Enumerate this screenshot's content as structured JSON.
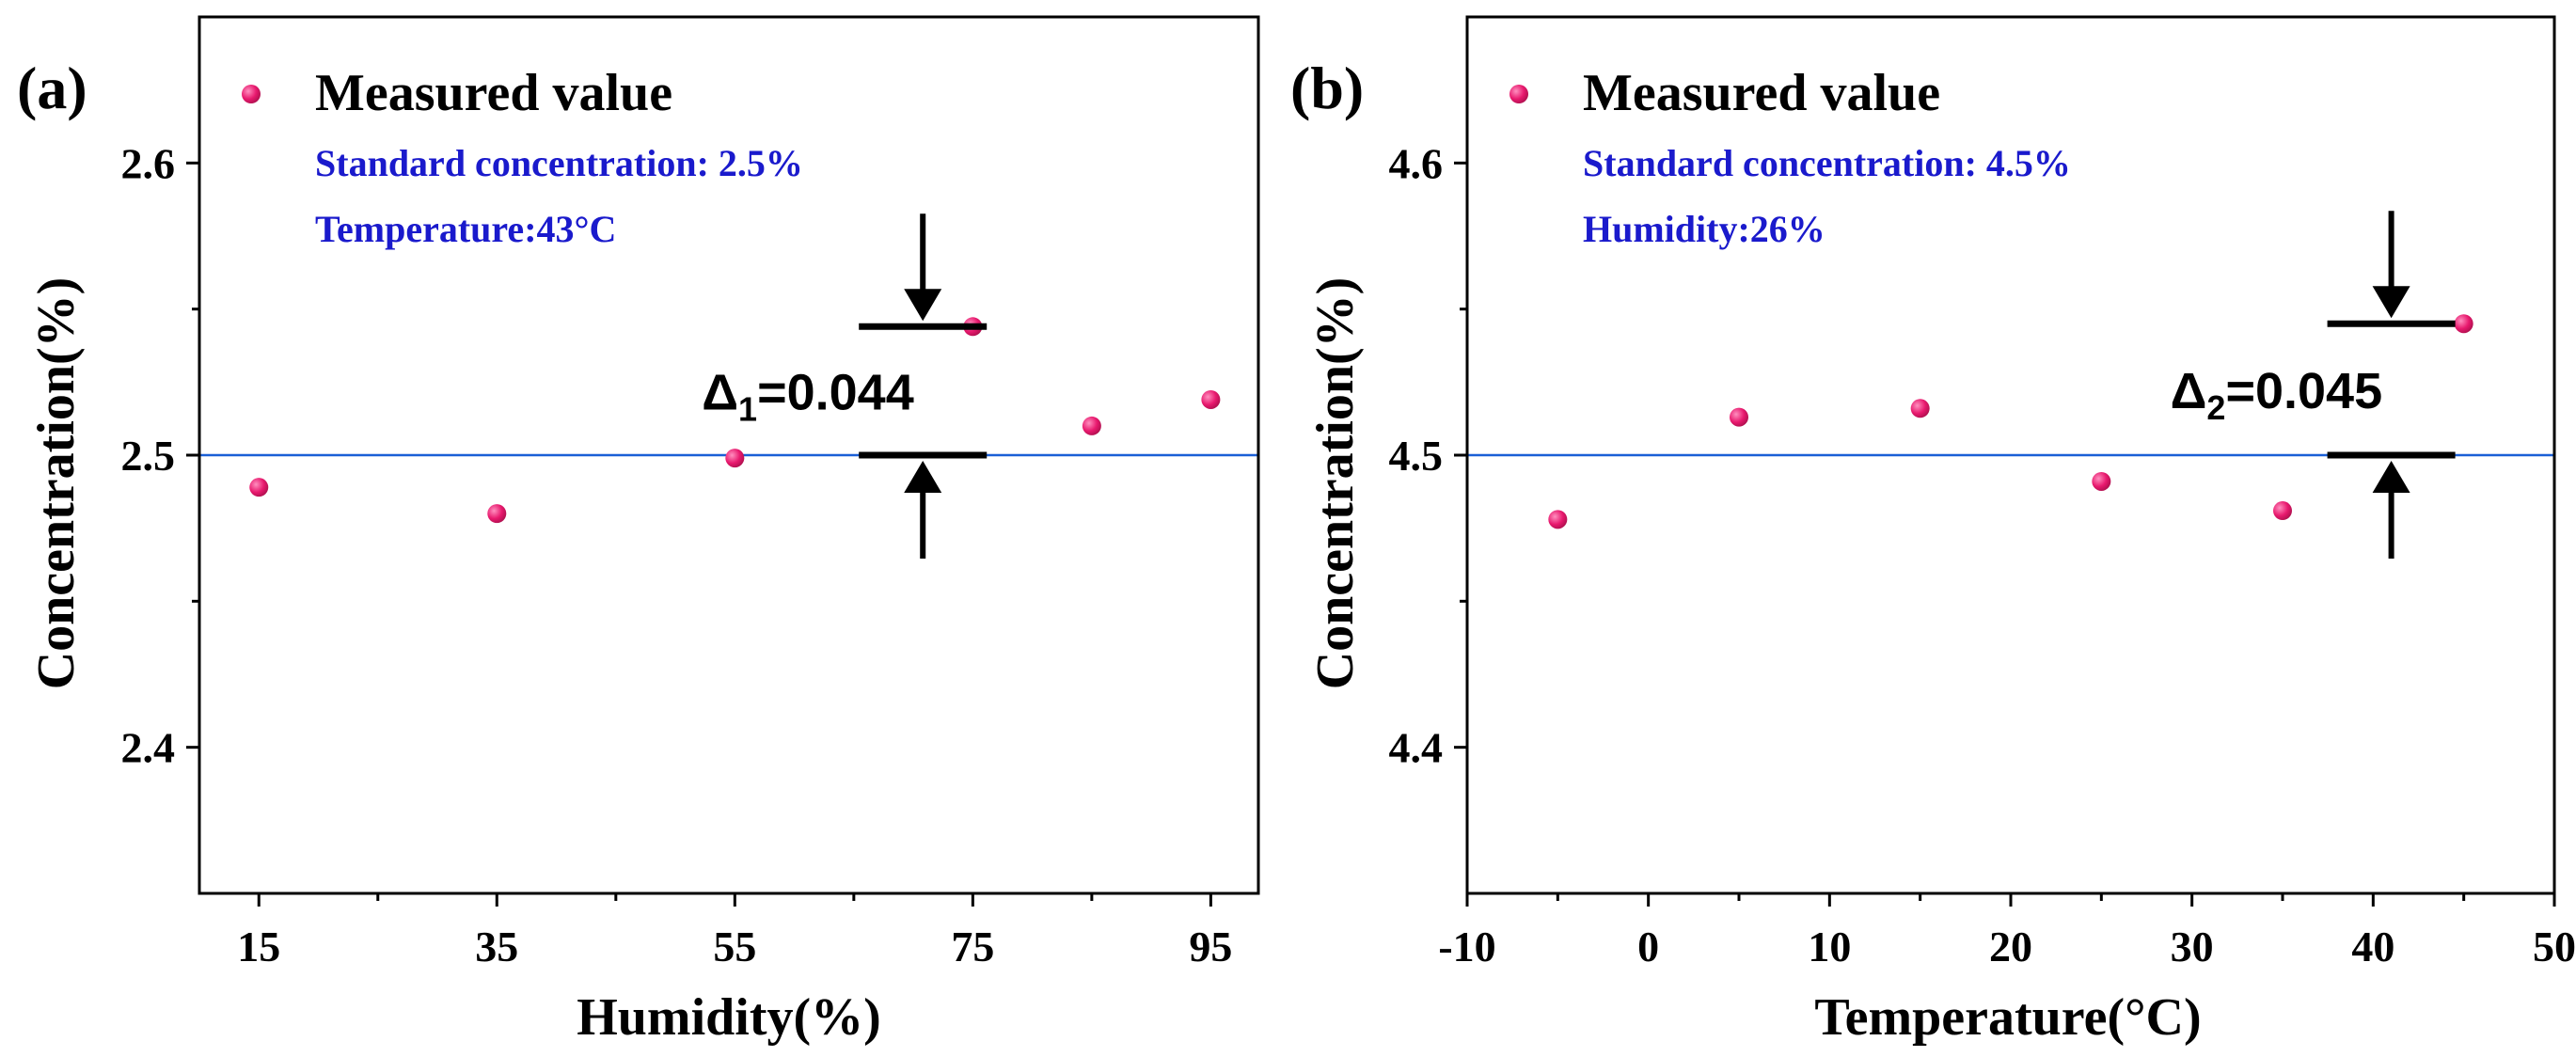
{
  "chart_data": [
    {
      "type": "scatter",
      "panel_label": "(a)",
      "xlabel": "Humidity(%)",
      "ylabel": "Concentration(%)",
      "xlim": [
        10,
        99
      ],
      "ylim": [
        2.35,
        2.65
      ],
      "xticks": [
        15,
        35,
        55,
        75,
        95
      ],
      "yticks": [
        2.4,
        2.5,
        2.6
      ],
      "legend": "top-left",
      "grid": false,
      "series": [
        {
          "name": "Measured value",
          "color": "#e8196e",
          "points": [
            {
              "x": 15,
              "y": 2.489
            },
            {
              "x": 35,
              "y": 2.48
            },
            {
              "x": 55,
              "y": 2.499
            },
            {
              "x": 75,
              "y": 2.544
            },
            {
              "x": 85,
              "y": 2.51
            },
            {
              "x": 95,
              "y": 2.519
            }
          ]
        }
      ],
      "reference_line": {
        "y": 2.5,
        "color": "#1a5fd6"
      },
      "notes": [
        "Standard concentration: 2.5%",
        "Temperature:43°C"
      ],
      "delta": {
        "symbol": "Δ",
        "subscript": "1",
        "text": "=0.044",
        "x": 70.8,
        "y_low": 2.5,
        "y_high": 2.544
      }
    },
    {
      "type": "scatter",
      "panel_label": "(b)",
      "xlabel": "Temperature(°C)",
      "ylabel": "Concentration(%)",
      "xlim": [
        -10,
        50
      ],
      "ylim": [
        4.35,
        4.65
      ],
      "xticks": [
        -10,
        0,
        10,
        20,
        30,
        40,
        50
      ],
      "yticks": [
        4.4,
        4.5,
        4.6
      ],
      "legend": "top-left",
      "grid": false,
      "series": [
        {
          "name": "Measured value",
          "color": "#e8196e",
          "points": [
            {
              "x": -5,
              "y": 4.478
            },
            {
              "x": 5,
              "y": 4.513
            },
            {
              "x": 15,
              "y": 4.516
            },
            {
              "x": 25,
              "y": 4.491
            },
            {
              "x": 35,
              "y": 4.481
            },
            {
              "x": 45,
              "y": 4.545
            }
          ]
        }
      ],
      "reference_line": {
        "y": 4.5,
        "color": "#1a5fd6"
      },
      "notes": [
        "Standard concentration: 4.5%",
        "Humidity:26%"
      ],
      "delta": {
        "symbol": "Δ",
        "subscript": "2",
        "text": "=0.045",
        "x": 41.0,
        "y_low": 4.5,
        "y_high": 4.545
      }
    }
  ]
}
